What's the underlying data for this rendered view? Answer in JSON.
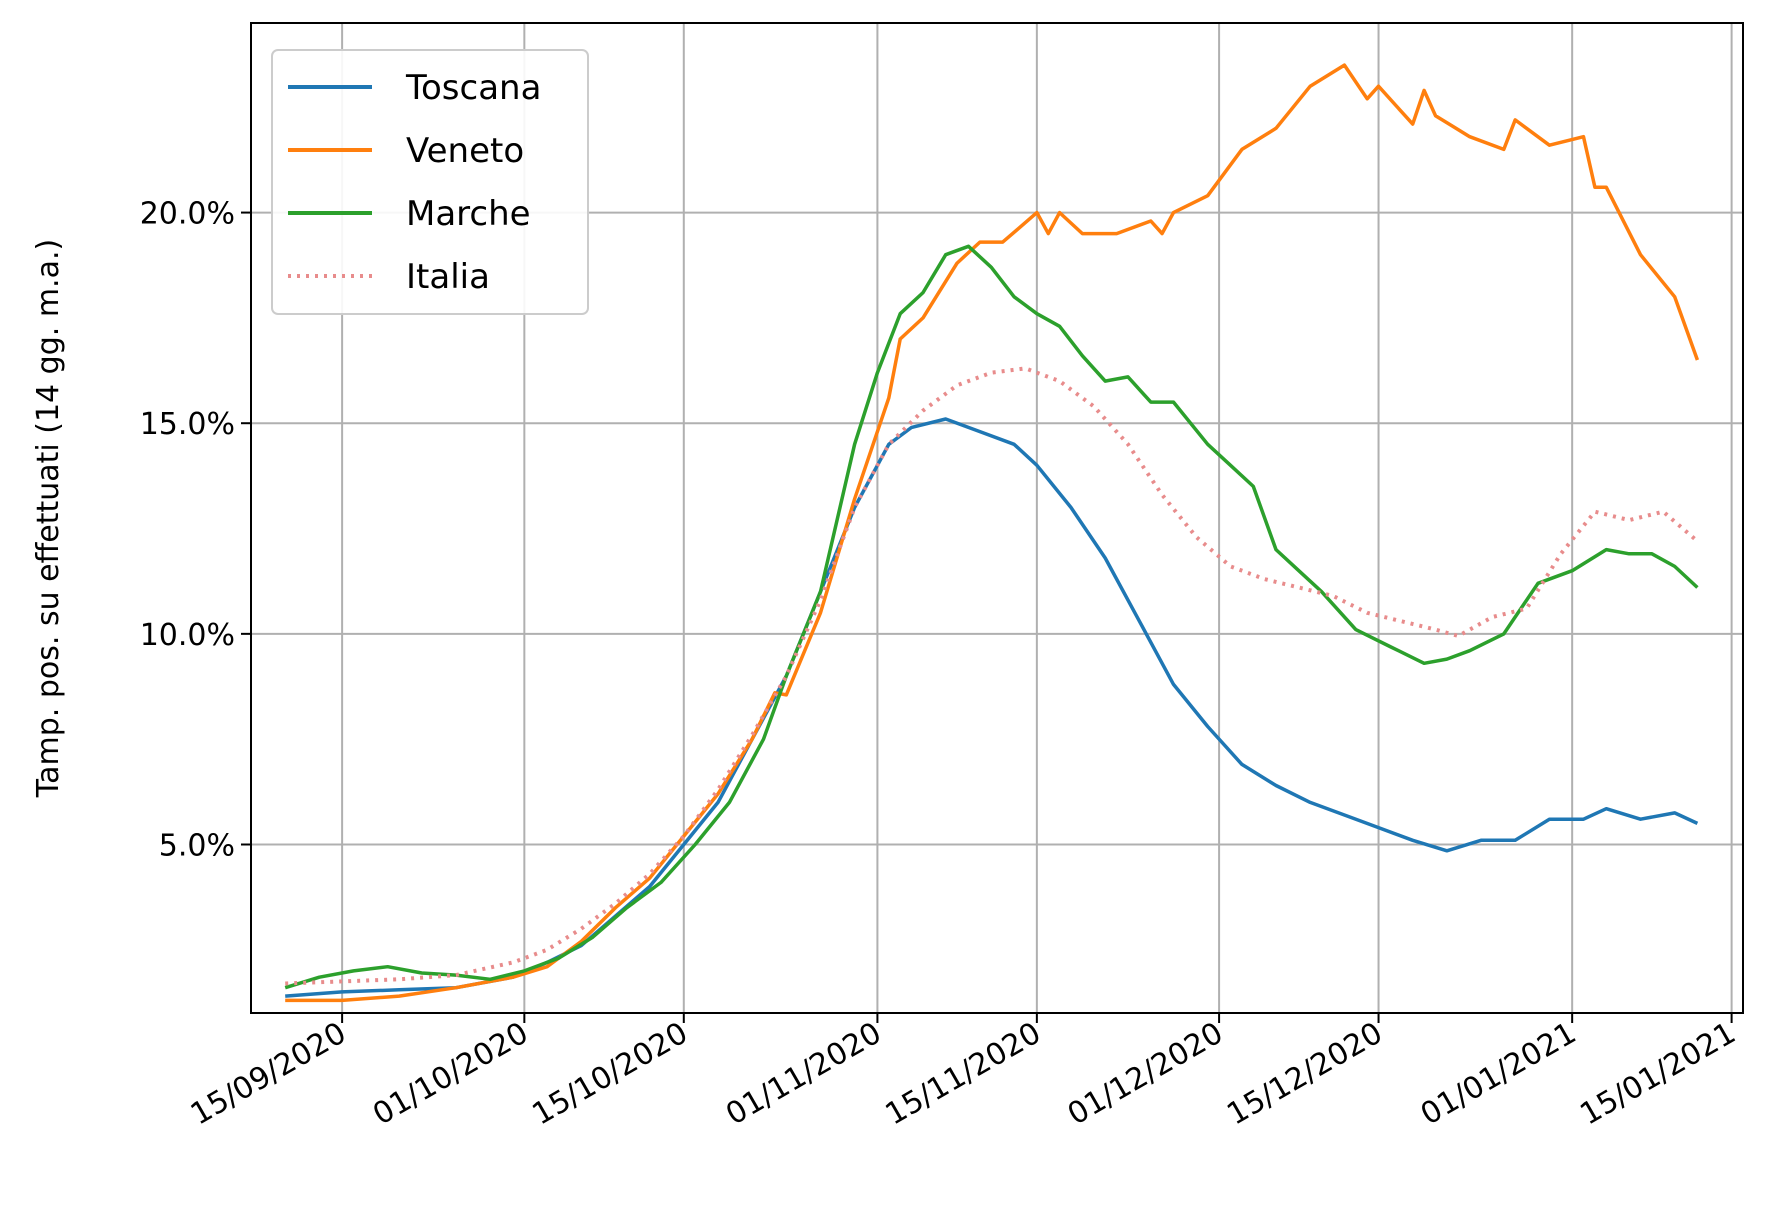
{
  "chart_data": {
    "type": "line",
    "xlabel": "",
    "ylabel": "Tamp. pos. su effettuati (14 gg. m.a.)",
    "x_type": "date",
    "xlim": [
      "2020-09-07",
      "2021-01-16"
    ],
    "ylim": [
      1.0,
      24.5
    ],
    "x_ticks": [
      {
        "date": "2020-09-15",
        "label": "15/09/2020"
      },
      {
        "date": "2020-10-01",
        "label": "01/10/2020"
      },
      {
        "date": "2020-10-15",
        "label": "15/10/2020"
      },
      {
        "date": "2020-11-01",
        "label": "01/11/2020"
      },
      {
        "date": "2020-11-15",
        "label": "15/11/2020"
      },
      {
        "date": "2020-12-01",
        "label": "01/12/2020"
      },
      {
        "date": "2020-12-15",
        "label": "15/12/2020"
      },
      {
        "date": "2021-01-01",
        "label": "01/01/2021"
      },
      {
        "date": "2021-01-15",
        "label": "15/01/2021"
      }
    ],
    "y_ticks": [
      {
        "value": 5,
        "label": "5.0%"
      },
      {
        "value": 10,
        "label": "10.0%"
      },
      {
        "value": 15,
        "label": "15.0%"
      },
      {
        "value": 20,
        "label": "20.0%"
      }
    ],
    "grid": true,
    "legend_position": "top-left",
    "series": [
      {
        "name": "Toscana",
        "color": "#1f77b4",
        "style": "solid",
        "points": [
          [
            "2020-09-10",
            1.4
          ],
          [
            "2020-09-15",
            1.5
          ],
          [
            "2020-09-20",
            1.55
          ],
          [
            "2020-09-25",
            1.6
          ],
          [
            "2020-09-30",
            1.85
          ],
          [
            "2020-10-03",
            2.2
          ],
          [
            "2020-10-06",
            2.6
          ],
          [
            "2020-10-09",
            3.3
          ],
          [
            "2020-10-12",
            4.0
          ],
          [
            "2020-10-15",
            5.0
          ],
          [
            "2020-10-18",
            6.0
          ],
          [
            "2020-10-21",
            7.5
          ],
          [
            "2020-10-24",
            9.0
          ],
          [
            "2020-10-27",
            11.0
          ],
          [
            "2020-10-30",
            13.0
          ],
          [
            "2020-11-02",
            14.5
          ],
          [
            "2020-11-04",
            14.9
          ],
          [
            "2020-11-07",
            15.1
          ],
          [
            "2020-11-10",
            14.8
          ],
          [
            "2020-11-13",
            14.5
          ],
          [
            "2020-11-15",
            14.0
          ],
          [
            "2020-11-18",
            13.0
          ],
          [
            "2020-11-21",
            11.8
          ],
          [
            "2020-11-24",
            10.3
          ],
          [
            "2020-11-27",
            8.8
          ],
          [
            "2020-11-30",
            7.8
          ],
          [
            "2020-12-03",
            6.9
          ],
          [
            "2020-12-06",
            6.4
          ],
          [
            "2020-12-09",
            6.0
          ],
          [
            "2020-12-12",
            5.7
          ],
          [
            "2020-12-15",
            5.4
          ],
          [
            "2020-12-18",
            5.1
          ],
          [
            "2020-12-21",
            4.85
          ],
          [
            "2020-12-24",
            5.1
          ],
          [
            "2020-12-27",
            5.1
          ],
          [
            "2020-12-30",
            5.6
          ],
          [
            "2021-01-02",
            5.6
          ],
          [
            "2021-01-04",
            5.85
          ],
          [
            "2021-01-07",
            5.6
          ],
          [
            "2021-01-10",
            5.75
          ],
          [
            "2021-01-12",
            5.5
          ]
        ]
      },
      {
        "name": "Veneto",
        "color": "#ff7f0e",
        "style": "solid",
        "points": [
          [
            "2020-09-10",
            1.3
          ],
          [
            "2020-09-15",
            1.3
          ],
          [
            "2020-09-20",
            1.4
          ],
          [
            "2020-09-25",
            1.6
          ],
          [
            "2020-09-30",
            1.85
          ],
          [
            "2020-10-03",
            2.1
          ],
          [
            "2020-10-06",
            2.7
          ],
          [
            "2020-10-09",
            3.5
          ],
          [
            "2020-10-12",
            4.2
          ],
          [
            "2020-10-15",
            5.2
          ],
          [
            "2020-10-18",
            6.2
          ],
          [
            "2020-10-21",
            7.5
          ],
          [
            "2020-10-23",
            8.6
          ],
          [
            "2020-10-24",
            8.55
          ],
          [
            "2020-10-27",
            10.5
          ],
          [
            "2020-10-30",
            13.2
          ],
          [
            "2020-11-02",
            15.6
          ],
          [
            "2020-11-03",
            17.0
          ],
          [
            "2020-11-05",
            17.5
          ],
          [
            "2020-11-08",
            18.8
          ],
          [
            "2020-11-10",
            19.3
          ],
          [
            "2020-11-12",
            19.3
          ],
          [
            "2020-11-15",
            20.0
          ],
          [
            "2020-11-16",
            19.5
          ],
          [
            "2020-11-17",
            20.0
          ],
          [
            "2020-11-19",
            19.5
          ],
          [
            "2020-11-22",
            19.5
          ],
          [
            "2020-11-25",
            19.8
          ],
          [
            "2020-11-26",
            19.5
          ],
          [
            "2020-11-27",
            20.0
          ],
          [
            "2020-11-30",
            20.4
          ],
          [
            "2020-12-03",
            21.5
          ],
          [
            "2020-12-06",
            22.0
          ],
          [
            "2020-12-09",
            23.0
          ],
          [
            "2020-12-12",
            23.5
          ],
          [
            "2020-12-14",
            22.7
          ],
          [
            "2020-12-15",
            23.0
          ],
          [
            "2020-12-18",
            22.1
          ],
          [
            "2020-12-19",
            22.9
          ],
          [
            "2020-12-20",
            22.3
          ],
          [
            "2020-12-23",
            21.8
          ],
          [
            "2020-12-26",
            21.5
          ],
          [
            "2020-12-27",
            22.2
          ],
          [
            "2020-12-30",
            21.6
          ],
          [
            "2021-01-02",
            21.8
          ],
          [
            "2021-01-03",
            20.6
          ],
          [
            "2021-01-04",
            20.6
          ],
          [
            "2021-01-07",
            19.0
          ],
          [
            "2021-01-10",
            18.0
          ],
          [
            "2021-01-12",
            16.5
          ]
        ]
      },
      {
        "name": "Marche",
        "color": "#2ca02c",
        "style": "solid",
        "points": [
          [
            "2020-09-10",
            1.6
          ],
          [
            "2020-09-13",
            1.85
          ],
          [
            "2020-09-16",
            2.0
          ],
          [
            "2020-09-19",
            2.1
          ],
          [
            "2020-09-22",
            1.95
          ],
          [
            "2020-09-25",
            1.9
          ],
          [
            "2020-09-28",
            1.8
          ],
          [
            "2020-10-01",
            2.0
          ],
          [
            "2020-10-04",
            2.3
          ],
          [
            "2020-10-07",
            2.8
          ],
          [
            "2020-10-10",
            3.5
          ],
          [
            "2020-10-13",
            4.1
          ],
          [
            "2020-10-16",
            5.0
          ],
          [
            "2020-10-19",
            6.0
          ],
          [
            "2020-10-22",
            7.5
          ],
          [
            "2020-10-24",
            9.0
          ],
          [
            "2020-10-27",
            11.0
          ],
          [
            "2020-10-30",
            14.5
          ],
          [
            "2020-11-01",
            16.2
          ],
          [
            "2020-11-03",
            17.6
          ],
          [
            "2020-11-05",
            18.1
          ],
          [
            "2020-11-07",
            19.0
          ],
          [
            "2020-11-09",
            19.2
          ],
          [
            "2020-11-11",
            18.7
          ],
          [
            "2020-11-13",
            18.0
          ],
          [
            "2020-11-15",
            17.6
          ],
          [
            "2020-11-17",
            17.3
          ],
          [
            "2020-11-19",
            16.6
          ],
          [
            "2020-11-21",
            16.0
          ],
          [
            "2020-11-23",
            16.1
          ],
          [
            "2020-11-25",
            15.5
          ],
          [
            "2020-11-27",
            15.5
          ],
          [
            "2020-11-30",
            14.5
          ],
          [
            "2020-12-02",
            14.0
          ],
          [
            "2020-12-04",
            13.5
          ],
          [
            "2020-12-06",
            12.0
          ],
          [
            "2020-12-08",
            11.5
          ],
          [
            "2020-12-10",
            11.0
          ],
          [
            "2020-12-13",
            10.1
          ],
          [
            "2020-12-16",
            9.7
          ],
          [
            "2020-12-19",
            9.3
          ],
          [
            "2020-12-21",
            9.4
          ],
          [
            "2020-12-23",
            9.6
          ],
          [
            "2020-12-26",
            10.0
          ],
          [
            "2020-12-29",
            11.2
          ],
          [
            "2021-01-01",
            11.5
          ],
          [
            "2021-01-04",
            12.0
          ],
          [
            "2021-01-06",
            11.9
          ],
          [
            "2021-01-08",
            11.9
          ],
          [
            "2021-01-10",
            11.6
          ],
          [
            "2021-01-12",
            11.1
          ]
        ]
      },
      {
        "name": "Italia",
        "color": "#e88c8c",
        "style": "dotted",
        "points": [
          [
            "2020-09-10",
            1.7
          ],
          [
            "2020-09-15",
            1.75
          ],
          [
            "2020-09-20",
            1.8
          ],
          [
            "2020-09-25",
            1.9
          ],
          [
            "2020-09-30",
            2.2
          ],
          [
            "2020-10-03",
            2.5
          ],
          [
            "2020-10-06",
            3.0
          ],
          [
            "2020-10-09",
            3.6
          ],
          [
            "2020-10-12",
            4.3
          ],
          [
            "2020-10-15",
            5.2
          ],
          [
            "2020-10-18",
            6.3
          ],
          [
            "2020-10-21",
            7.6
          ],
          [
            "2020-10-24",
            9.0
          ],
          [
            "2020-10-27",
            10.8
          ],
          [
            "2020-10-30",
            13.0
          ],
          [
            "2020-11-02",
            14.5
          ],
          [
            "2020-11-05",
            15.3
          ],
          [
            "2020-11-08",
            15.9
          ],
          [
            "2020-11-11",
            16.2
          ],
          [
            "2020-11-14",
            16.3
          ],
          [
            "2020-11-17",
            16.0
          ],
          [
            "2020-11-20",
            15.4
          ],
          [
            "2020-11-23",
            14.5
          ],
          [
            "2020-11-26",
            13.3
          ],
          [
            "2020-11-29",
            12.3
          ],
          [
            "2020-12-02",
            11.6
          ],
          [
            "2020-12-05",
            11.3
          ],
          [
            "2020-12-08",
            11.1
          ],
          [
            "2020-12-11",
            10.9
          ],
          [
            "2020-12-14",
            10.5
          ],
          [
            "2020-12-17",
            10.3
          ],
          [
            "2020-12-20",
            10.1
          ],
          [
            "2020-12-22",
            9.95
          ],
          [
            "2020-12-25",
            10.4
          ],
          [
            "2020-12-28",
            10.6
          ],
          [
            "2020-12-31",
            11.9
          ],
          [
            "2021-01-03",
            12.9
          ],
          [
            "2021-01-06",
            12.7
          ],
          [
            "2021-01-09",
            12.9
          ],
          [
            "2021-01-12",
            12.2
          ]
        ]
      }
    ]
  }
}
